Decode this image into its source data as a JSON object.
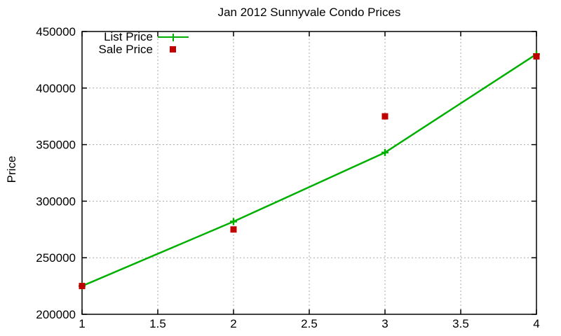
{
  "chart_data": {
    "type": "line",
    "title": "Jan 2012 Sunnyvale Condo Prices",
    "xlabel": "",
    "ylabel": "Price",
    "x": [
      1,
      2,
      3,
      4
    ],
    "series": [
      {
        "name": "List Price",
        "style": "linespoints",
        "marker": "plus",
        "color": "#00b000",
        "values": [
          225000,
          282000,
          343000,
          430000
        ]
      },
      {
        "name": "Sale Price",
        "style": "points",
        "marker": "filled-square",
        "color": "#c00000",
        "values": [
          225000,
          275000,
          375000,
          428000
        ]
      }
    ],
    "xlim": [
      1,
      4
    ],
    "ylim": [
      200000,
      450000
    ],
    "xticks": [
      1,
      1.5,
      2,
      2.5,
      3,
      3.5,
      4
    ],
    "xtick_labels": [
      "1",
      "1.5",
      "2",
      "2.5",
      "3",
      "3.5",
      "4"
    ],
    "yticks": [
      200000,
      250000,
      300000,
      350000,
      400000,
      450000
    ],
    "ytick_labels": [
      "200000",
      "250000",
      "300000",
      "350000",
      "400000",
      "450000"
    ],
    "grid": true,
    "grid_color": "#a8a8a8",
    "axis_color": "#000000",
    "background": "#ffffff",
    "legend_position": "top-left-inside"
  }
}
